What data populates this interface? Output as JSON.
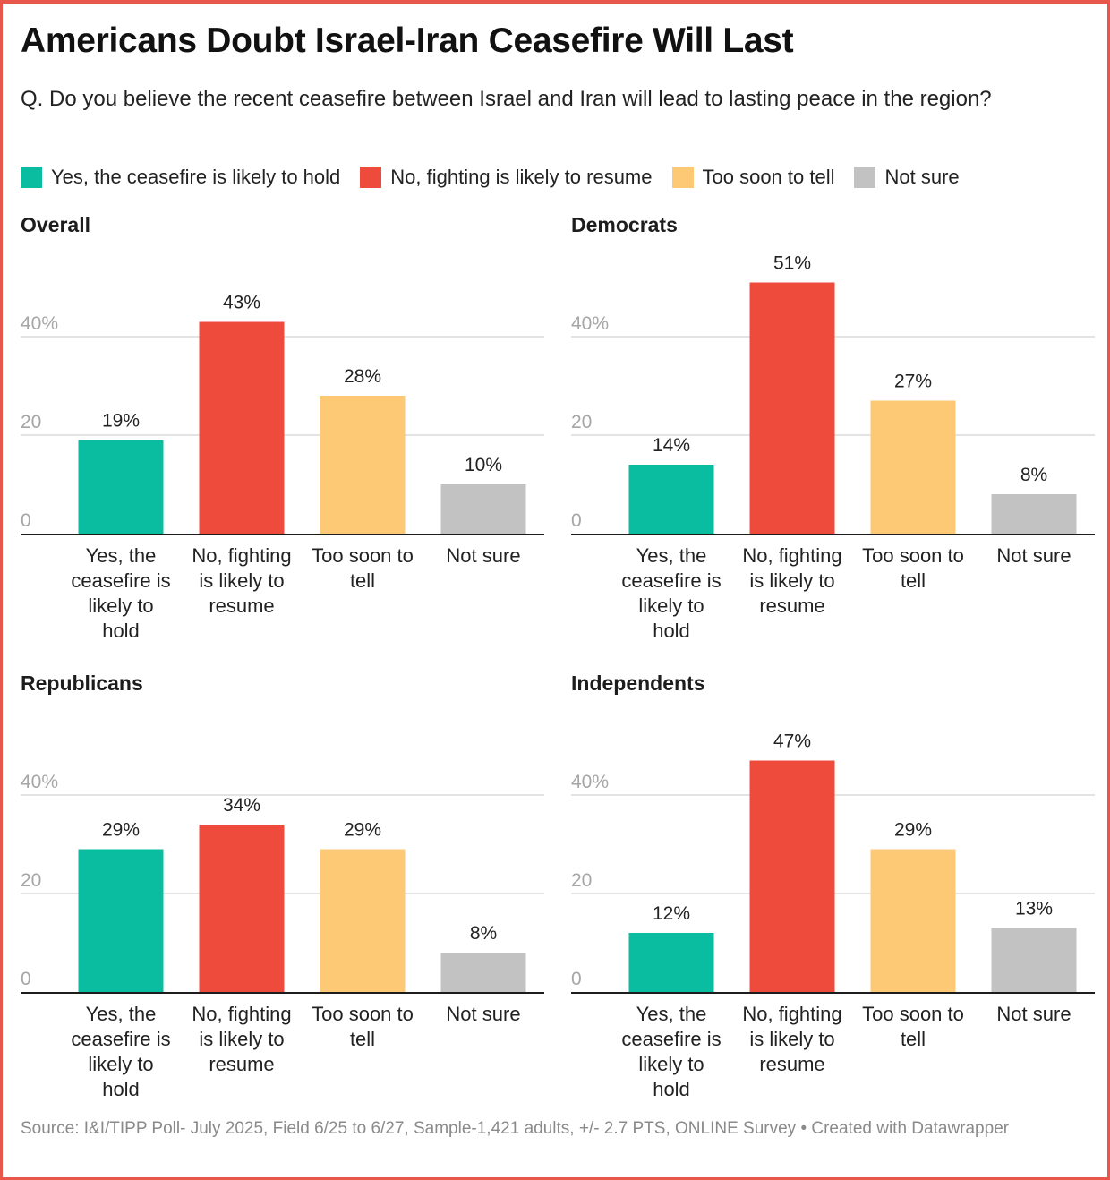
{
  "title": "Americans Doubt Israel-Iran Ceasefire Will Last",
  "subtitle": "Q. Do you believe the recent ceasefire between Israel and Iran will lead to lasting peace in the region?",
  "legend": [
    {
      "label": "Yes, the ceasefire is likely to hold",
      "color": "#0abda0"
    },
    {
      "label": "No, fighting is likely to resume",
      "color": "#ef4b3d"
    },
    {
      "label": "Too soon to tell",
      "color": "#fdc975"
    },
    {
      "label": "Not sure",
      "color": "#c2c2c2"
    }
  ],
  "source": "Source: I&I/TIPP Poll- July 2025, Field 6/25 to 6/27, Sample-1,421 adults, +/- 2.7 PTS, ONLINE Survey • Created with Datawrapper",
  "chart_data": [
    {
      "type": "bar",
      "title": "Overall",
      "categories": [
        "Yes, the ceasefire is likely to hold",
        "No, fighting is likely to resume",
        "Too soon to tell",
        "Not sure"
      ],
      "category_lines": [
        [
          "Yes, the",
          "ceasefire is",
          "likely to",
          "hold"
        ],
        [
          "No, fighting",
          "is likely to",
          "resume"
        ],
        [
          "Too soon to",
          "tell"
        ],
        [
          "Not sure"
        ]
      ],
      "values": [
        19,
        43,
        28,
        10
      ],
      "value_labels": [
        "19%",
        "43%",
        "28%",
        "10%"
      ],
      "colors": [
        "#0abda0",
        "#ef4b3d",
        "#fdc975",
        "#c2c2c2"
      ],
      "yticks": [
        0,
        20,
        40
      ],
      "ytick_labels": [
        "0",
        "20",
        "40%"
      ],
      "ylim": [
        0,
        40
      ],
      "grid": true
    },
    {
      "type": "bar",
      "title": "Democrats",
      "categories": [
        "Yes, the ceasefire is likely to hold",
        "No, fighting is likely to resume",
        "Too soon to tell",
        "Not sure"
      ],
      "category_lines": [
        [
          "Yes, the",
          "ceasefire is",
          "likely to",
          "hold"
        ],
        [
          "No, fighting",
          "is likely to",
          "resume"
        ],
        [
          "Too soon to",
          "tell"
        ],
        [
          "Not sure"
        ]
      ],
      "values": [
        14,
        51,
        27,
        8
      ],
      "value_labels": [
        "14%",
        "51%",
        "27%",
        "8%"
      ],
      "colors": [
        "#0abda0",
        "#ef4b3d",
        "#fdc975",
        "#c2c2c2"
      ],
      "yticks": [
        0,
        20,
        40
      ],
      "ytick_labels": [
        "0",
        "20",
        "40%"
      ],
      "ylim": [
        0,
        40
      ],
      "grid": true
    },
    {
      "type": "bar",
      "title": "Republicans",
      "categories": [
        "Yes, the ceasefire is likely to hold",
        "No, fighting is likely to resume",
        "Too soon to tell",
        "Not sure"
      ],
      "category_lines": [
        [
          "Yes, the",
          "ceasefire is",
          "likely to",
          "hold"
        ],
        [
          "No, fighting",
          "is likely to",
          "resume"
        ],
        [
          "Too soon to",
          "tell"
        ],
        [
          "Not sure"
        ]
      ],
      "values": [
        29,
        34,
        29,
        8
      ],
      "value_labels": [
        "29%",
        "34%",
        "29%",
        "8%"
      ],
      "colors": [
        "#0abda0",
        "#ef4b3d",
        "#fdc975",
        "#c2c2c2"
      ],
      "yticks": [
        0,
        20,
        40
      ],
      "ytick_labels": [
        "0",
        "20",
        "40%"
      ],
      "ylim": [
        0,
        40
      ],
      "grid": true
    },
    {
      "type": "bar",
      "title": "Independents",
      "categories": [
        "Yes, the ceasefire is likely to hold",
        "No, fighting is likely to resume",
        "Too soon to tell",
        "Not sure"
      ],
      "category_lines": [
        [
          "Yes, the",
          "ceasefire is",
          "likely to",
          "hold"
        ],
        [
          "No, fighting",
          "is likely to",
          "resume"
        ],
        [
          "Too soon to",
          "tell"
        ],
        [
          "Not sure"
        ]
      ],
      "values": [
        12,
        47,
        29,
        13
      ],
      "value_labels": [
        "12%",
        "47%",
        "29%",
        "13%"
      ],
      "colors": [
        "#0abda0",
        "#ef4b3d",
        "#fdc975",
        "#c2c2c2"
      ],
      "yticks": [
        0,
        20,
        40
      ],
      "ytick_labels": [
        "0",
        "20",
        "40%"
      ],
      "ylim": [
        0,
        40
      ],
      "grid": true
    }
  ]
}
